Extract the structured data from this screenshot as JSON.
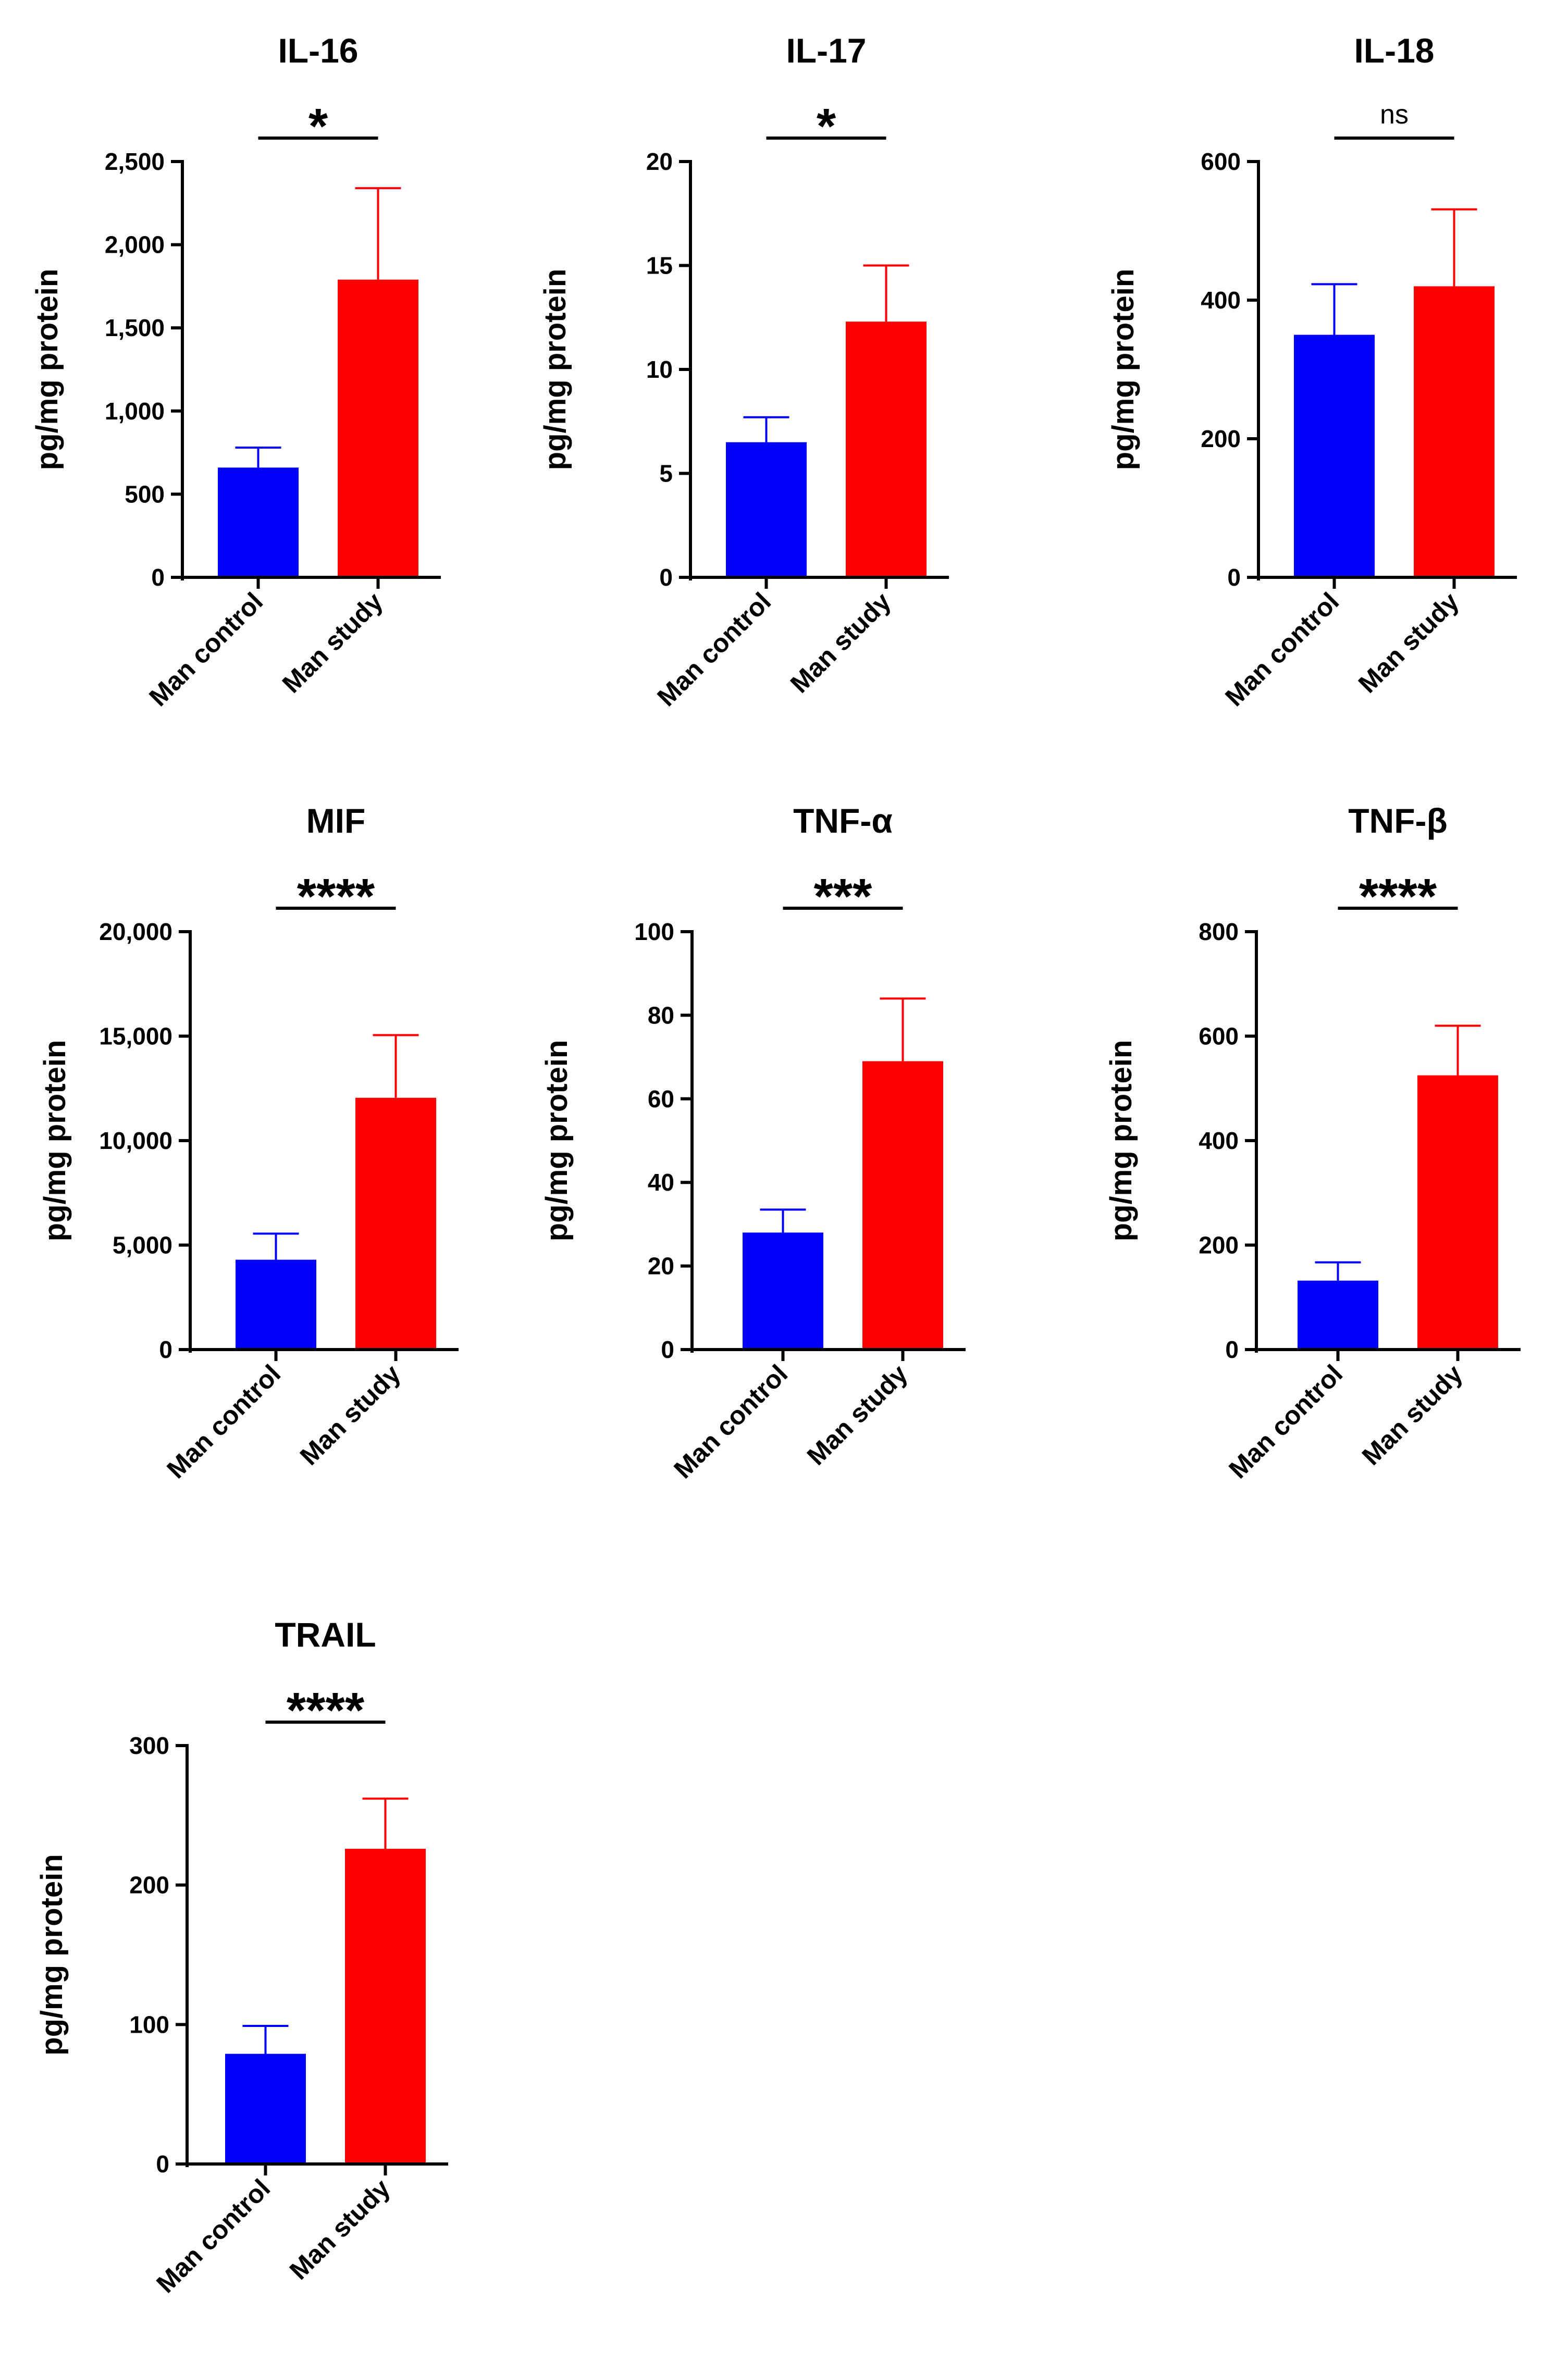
{
  "figure": {
    "background": "#ffffff"
  },
  "colors": {
    "control": "#0000ff",
    "study": "#ff0000",
    "axis": "#000000"
  },
  "chart_data": [
    {
      "type": "bar",
      "title": "IL-16",
      "ylabel": "pg/mg protein",
      "categories": [
        "Man control",
        "Man study"
      ],
      "values": [
        660,
        1790
      ],
      "errors": [
        120,
        550
      ],
      "ylim": [
        0,
        2500
      ],
      "ticks": [
        0,
        500,
        1000,
        1500,
        2000,
        2500
      ],
      "tick_labels": [
        "0",
        "500",
        "1,000",
        "1,500",
        "2,000",
        "2,500"
      ],
      "significance": "*"
    },
    {
      "type": "bar",
      "title": "IL-17",
      "ylabel": "pg/mg protein",
      "categories": [
        "Man control",
        "Man study"
      ],
      "values": [
        6.5,
        12.3
      ],
      "errors": [
        1.2,
        2.7
      ],
      "ylim": [
        0,
        20
      ],
      "ticks": [
        0,
        5,
        10,
        15,
        20
      ],
      "tick_labels": [
        "0",
        "5",
        "10",
        "15",
        "20"
      ],
      "significance": "*"
    },
    {
      "type": "bar",
      "title": "IL-18",
      "ylabel": "pg/mg protein",
      "categories": [
        "Man control",
        "Man study"
      ],
      "values": [
        350,
        420
      ],
      "errors": [
        73,
        111
      ],
      "ylim": [
        0,
        600
      ],
      "ticks": [
        0,
        200,
        400,
        600
      ],
      "tick_labels": [
        "0",
        "200",
        "400",
        "600"
      ],
      "significance": "ns"
    },
    {
      "type": "bar",
      "title": "MIF",
      "ylabel": "pg/mg protein",
      "categories": [
        "Man control",
        "Man study"
      ],
      "values": [
        4300,
        12050
      ],
      "errors": [
        1250,
        3000
      ],
      "ylim": [
        0,
        20000
      ],
      "ticks": [
        0,
        5000,
        10000,
        15000,
        20000
      ],
      "tick_labels": [
        "0",
        "5,000",
        "10,000",
        "15,000",
        "20,000"
      ],
      "significance": "****"
    },
    {
      "type": "bar",
      "title": "TNF-α",
      "ylabel": "pg/mg protein",
      "categories": [
        "Man control",
        "Man study"
      ],
      "values": [
        28,
        69
      ],
      "errors": [
        5.5,
        15
      ],
      "ylim": [
        0,
        100
      ],
      "ticks": [
        0,
        20,
        40,
        60,
        80,
        100
      ],
      "tick_labels": [
        "0",
        "20",
        "40",
        "60",
        "80",
        "100"
      ],
      "significance": "***"
    },
    {
      "type": "bar",
      "title": "TNF-β",
      "ylabel": "pg/mg protein",
      "categories": [
        "Man control",
        "Man study"
      ],
      "values": [
        132,
        525
      ],
      "errors": [
        35,
        95
      ],
      "ylim": [
        0,
        800
      ],
      "ticks": [
        0,
        200,
        400,
        600,
        800
      ],
      "tick_labels": [
        "0",
        "200",
        "400",
        "600",
        "800"
      ],
      "significance": "****"
    },
    {
      "type": "bar",
      "title": "TRAIL",
      "ylabel": "pg/mg protein",
      "categories": [
        "Man control",
        "Man study"
      ],
      "values": [
        79,
        226
      ],
      "errors": [
        20,
        36
      ],
      "ylim": [
        0,
        300
      ],
      "ticks": [
        0,
        100,
        200,
        300
      ],
      "tick_labels": [
        "0",
        "100",
        "200",
        "300"
      ],
      "significance": "****"
    }
  ]
}
